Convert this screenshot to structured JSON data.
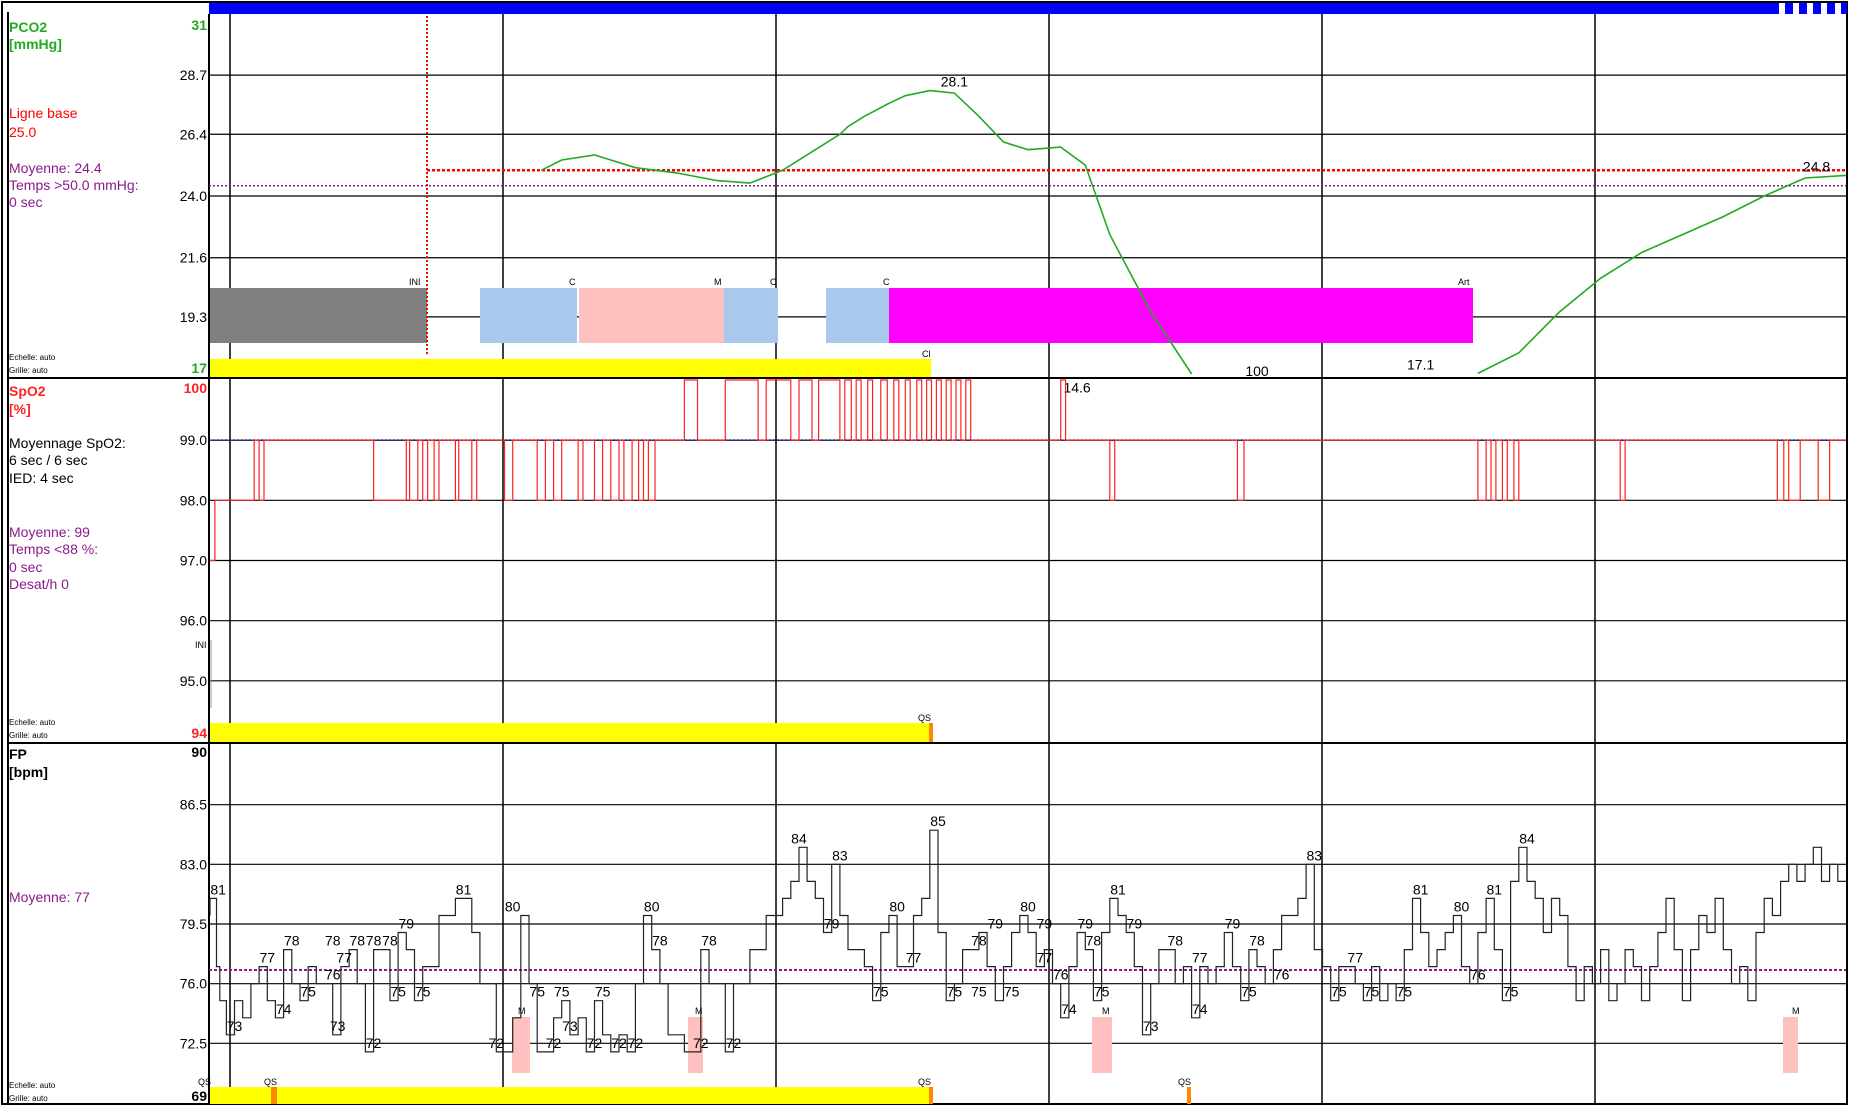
{
  "colors": {
    "pco2": "#22aa22",
    "baseline": "#ff0000",
    "mean": "#8b1a8b",
    "spo2": "#ff2222",
    "fp": "#222222",
    "band_yellow": "#ffff00",
    "band_orange": "#ff8800",
    "top_bar": "#0000ff",
    "evt_gray": "#808080",
    "evt_blue": "#a9c8ee",
    "evt_pink": "#ffc0c0",
    "evt_magenta": "#ff00ff"
  },
  "chart_data": [
    {
      "type": "line",
      "panel": "pco2",
      "title": "PCO2",
      "unit": "[mmHg]",
      "top_value": "31",
      "bottom_value": "17",
      "ylim": [
        17,
        31
      ],
      "ytick_labels": [
        "28.7",
        "26.4",
        "24.0",
        "21.6",
        "19.3"
      ],
      "yticks": [
        28.7,
        26.4,
        24.0,
        21.6,
        19.3
      ],
      "baseline_label": "Ligne base",
      "baseline_value_label": "25.0",
      "baseline": 25.0,
      "mean_label": "Moyenne: 24.4",
      "mean": 24.4,
      "extra_lines": [
        "Temps >50.0 mmHg:",
        "0 sec"
      ],
      "scale_note": "Echelle: auto",
      "grid_note": "Grille: auto",
      "series": [
        {
          "x": [
            0.2025,
            0.215,
            0.235,
            0.26,
            0.285,
            0.31,
            0.33,
            0.35,
            0.37,
            0.385,
            0.39,
            0.4,
            0.415,
            0.425,
            0.44,
            0.455,
            0.47,
            0.485,
            0.5,
            0.52,
            0.535,
            0.55,
            0.575,
            0.6,
            0.625,
            0.65,
            0.675,
            0.7,
            0.725,
            0.75,
            0.775,
            0.8,
            0.825,
            0.85,
            0.875,
            0.9,
            0.925,
            0.95,
            0.975,
            1.0
          ],
          "y": [
            25.0,
            25.4,
            25.6,
            25.1,
            24.9,
            24.6,
            24.5,
            25.0,
            25.8,
            26.4,
            26.7,
            27.1,
            27.6,
            27.9,
            28.1,
            28.0,
            27.1,
            26.1,
            25.8,
            25.9,
            25.2,
            22.5,
            19.5,
            16.5,
            null,
            null,
            null,
            null,
            null,
            null,
            17.1,
            17.9,
            19.5,
            20.8,
            21.8,
            22.5,
            23.2,
            24.0,
            24.7,
            24.8
          ]
        }
      ],
      "value_labels": [
        {
          "x": 0.455,
          "y": 28.1,
          "text": "28.1"
        },
        {
          "x": 0.982,
          "y": 24.8,
          "text": "24.8"
        },
        {
          "x": 0.53,
          "y": 16.2,
          "text": "14.6"
        },
        {
          "x": 0.74,
          "y": 17.1,
          "text": "17.1"
        }
      ]
    },
    {
      "type": "line",
      "panel": "spo2",
      "title": "SpO2",
      "unit": "[%]",
      "top_value": "100",
      "bottom_value": "94",
      "ylim": [
        94,
        100
      ],
      "ytick_labels": [
        "99.0",
        "98.0",
        "97.0",
        "96.0",
        "95.0"
      ],
      "yticks": [
        99.0,
        98.0,
        97.0,
        96.0,
        95.0
      ],
      "avg_label": "Moyennage SpO2:",
      "avg_value": "6 sec / 6 sec",
      "ied_label": "IED: 4 sec",
      "mean_label": "Moyenne: 99",
      "mean": 99.0,
      "extra_lines": [
        "Temps <88 %:",
        "0 sec",
        "Desat/h 0"
      ],
      "scale_note": "Echelle: auto",
      "grid_note": "Grille: auto",
      "value_labels": [
        {
          "x": 0.64,
          "y": 100,
          "text": "100"
        }
      ]
    },
    {
      "type": "line",
      "panel": "fp",
      "title": "FP",
      "unit": "[bpm]",
      "top_value": "90",
      "bottom_value": "69",
      "ylim": [
        69,
        90
      ],
      "ytick_labels": [
        "86.5",
        "83.0",
        "79.5",
        "76.0",
        "72.5"
      ],
      "yticks": [
        86.5,
        83.0,
        79.5,
        76.0,
        72.5
      ],
      "mean_label": "Moyenne: 77",
      "mean": 76.8,
      "scale_note": "Echelle: auto",
      "grid_note": "Grille: auto",
      "value_labels": [
        {
          "x": 0.005,
          "y": 81,
          "text": "81"
        },
        {
          "x": 0.015,
          "y": 73,
          "text": "73"
        },
        {
          "x": 0.035,
          "y": 77,
          "text": "77"
        },
        {
          "x": 0.045,
          "y": 74,
          "text": "74"
        },
        {
          "x": 0.05,
          "y": 78,
          "text": "78"
        },
        {
          "x": 0.06,
          "y": 75,
          "text": "75"
        },
        {
          "x": 0.075,
          "y": 76,
          "text": "76"
        },
        {
          "x": 0.078,
          "y": 73,
          "text": "73"
        },
        {
          "x": 0.082,
          "y": 77,
          "text": "77"
        },
        {
          "x": 0.075,
          "y": 78,
          "text": "78"
        },
        {
          "x": 0.09,
          "y": 78,
          "text": "78"
        },
        {
          "x": 0.1,
          "y": 72,
          "text": "72"
        },
        {
          "x": 0.1,
          "y": 78,
          "text": "78"
        },
        {
          "x": 0.11,
          "y": 78,
          "text": "78"
        },
        {
          "x": 0.12,
          "y": 79,
          "text": "79"
        },
        {
          "x": 0.115,
          "y": 75,
          "text": "75"
        },
        {
          "x": 0.13,
          "y": 75,
          "text": "75"
        },
        {
          "x": 0.155,
          "y": 81,
          "text": "81"
        },
        {
          "x": 0.185,
          "y": 80,
          "text": "80"
        },
        {
          "x": 0.175,
          "y": 72,
          "text": "72"
        },
        {
          "x": 0.21,
          "y": 72,
          "text": "72"
        },
        {
          "x": 0.2,
          "y": 75,
          "text": "75"
        },
        {
          "x": 0.215,
          "y": 75,
          "text": "75"
        },
        {
          "x": 0.22,
          "y": 73,
          "text": "73"
        },
        {
          "x": 0.24,
          "y": 75,
          "text": "75"
        },
        {
          "x": 0.235,
          "y": 72,
          "text": "72"
        },
        {
          "x": 0.25,
          "y": 72,
          "text": "72"
        },
        {
          "x": 0.26,
          "y": 72,
          "text": "72"
        },
        {
          "x": 0.27,
          "y": 80,
          "text": "80"
        },
        {
          "x": 0.275,
          "y": 78,
          "text": "78"
        },
        {
          "x": 0.305,
          "y": 78,
          "text": "78"
        },
        {
          "x": 0.3,
          "y": 72,
          "text": "72"
        },
        {
          "x": 0.32,
          "y": 72,
          "text": "72"
        },
        {
          "x": 0.36,
          "y": 84,
          "text": "84"
        },
        {
          "x": 0.385,
          "y": 83,
          "text": "83"
        },
        {
          "x": 0.38,
          "y": 79,
          "text": "79"
        },
        {
          "x": 0.41,
          "y": 75,
          "text": "75"
        },
        {
          "x": 0.42,
          "y": 80,
          "text": "80"
        },
        {
          "x": 0.43,
          "y": 77,
          "text": "77"
        },
        {
          "x": 0.445,
          "y": 85,
          "text": "85"
        },
        {
          "x": 0.455,
          "y": 75,
          "text": "75"
        },
        {
          "x": 0.47,
          "y": 75,
          "text": "75"
        },
        {
          "x": 0.47,
          "y": 78,
          "text": "78"
        },
        {
          "x": 0.48,
          "y": 79,
          "text": "79"
        },
        {
          "x": 0.49,
          "y": 75,
          "text": "75"
        },
        {
          "x": 0.5,
          "y": 80,
          "text": "80"
        },
        {
          "x": 0.51,
          "y": 79,
          "text": "79"
        },
        {
          "x": 0.51,
          "y": 77,
          "text": "77"
        },
        {
          "x": 0.52,
          "y": 76,
          "text": "76"
        },
        {
          "x": 0.525,
          "y": 74,
          "text": "74"
        },
        {
          "x": 0.535,
          "y": 79,
          "text": "79"
        },
        {
          "x": 0.54,
          "y": 78,
          "text": "78"
        },
        {
          "x": 0.545,
          "y": 75,
          "text": "75"
        },
        {
          "x": 0.555,
          "y": 81,
          "text": "81"
        },
        {
          "x": 0.565,
          "y": 79,
          "text": "79"
        },
        {
          "x": 0.575,
          "y": 73,
          "text": "73"
        },
        {
          "x": 0.59,
          "y": 78,
          "text": "78"
        },
        {
          "x": 0.605,
          "y": 77,
          "text": "77"
        },
        {
          "x": 0.605,
          "y": 74,
          "text": "74"
        },
        {
          "x": 0.625,
          "y": 79,
          "text": "79"
        },
        {
          "x": 0.64,
          "y": 78,
          "text": "78"
        },
        {
          "x": 0.635,
          "y": 75,
          "text": "75"
        },
        {
          "x": 0.655,
          "y": 76,
          "text": "76"
        },
        {
          "x": 0.675,
          "y": 83,
          "text": "83"
        },
        {
          "x": 0.7,
          "y": 77,
          "text": "77"
        },
        {
          "x": 0.69,
          "y": 75,
          "text": "75"
        },
        {
          "x": 0.71,
          "y": 75,
          "text": "75"
        },
        {
          "x": 0.73,
          "y": 75,
          "text": "75"
        },
        {
          "x": 0.74,
          "y": 81,
          "text": "81"
        },
        {
          "x": 0.765,
          "y": 80,
          "text": "80"
        },
        {
          "x": 0.775,
          "y": 76,
          "text": "76"
        },
        {
          "x": 0.785,
          "y": 81,
          "text": "81"
        },
        {
          "x": 0.795,
          "y": 75,
          "text": "75"
        },
        {
          "x": 0.805,
          "y": 84,
          "text": "84"
        }
      ]
    }
  ],
  "events": {
    "pco2_row": [
      {
        "label": "INI",
        "color": "gray"
      },
      {
        "label": "C",
        "color": "blue"
      },
      {
        "label": "M",
        "color": "pink"
      },
      {
        "label": "C",
        "color": "blue"
      },
      {
        "label": "C",
        "color": "blue"
      },
      {
        "label": "Art",
        "color": "magenta"
      }
    ],
    "pco2_band_mark": "Cl",
    "spo2_mark": "INI",
    "spo2_band_mark": "QS",
    "fp_marks": [
      "M",
      "M",
      "M",
      "M"
    ],
    "fp_band_marks": [
      "QS",
      "QS",
      "QS",
      "QS"
    ]
  }
}
